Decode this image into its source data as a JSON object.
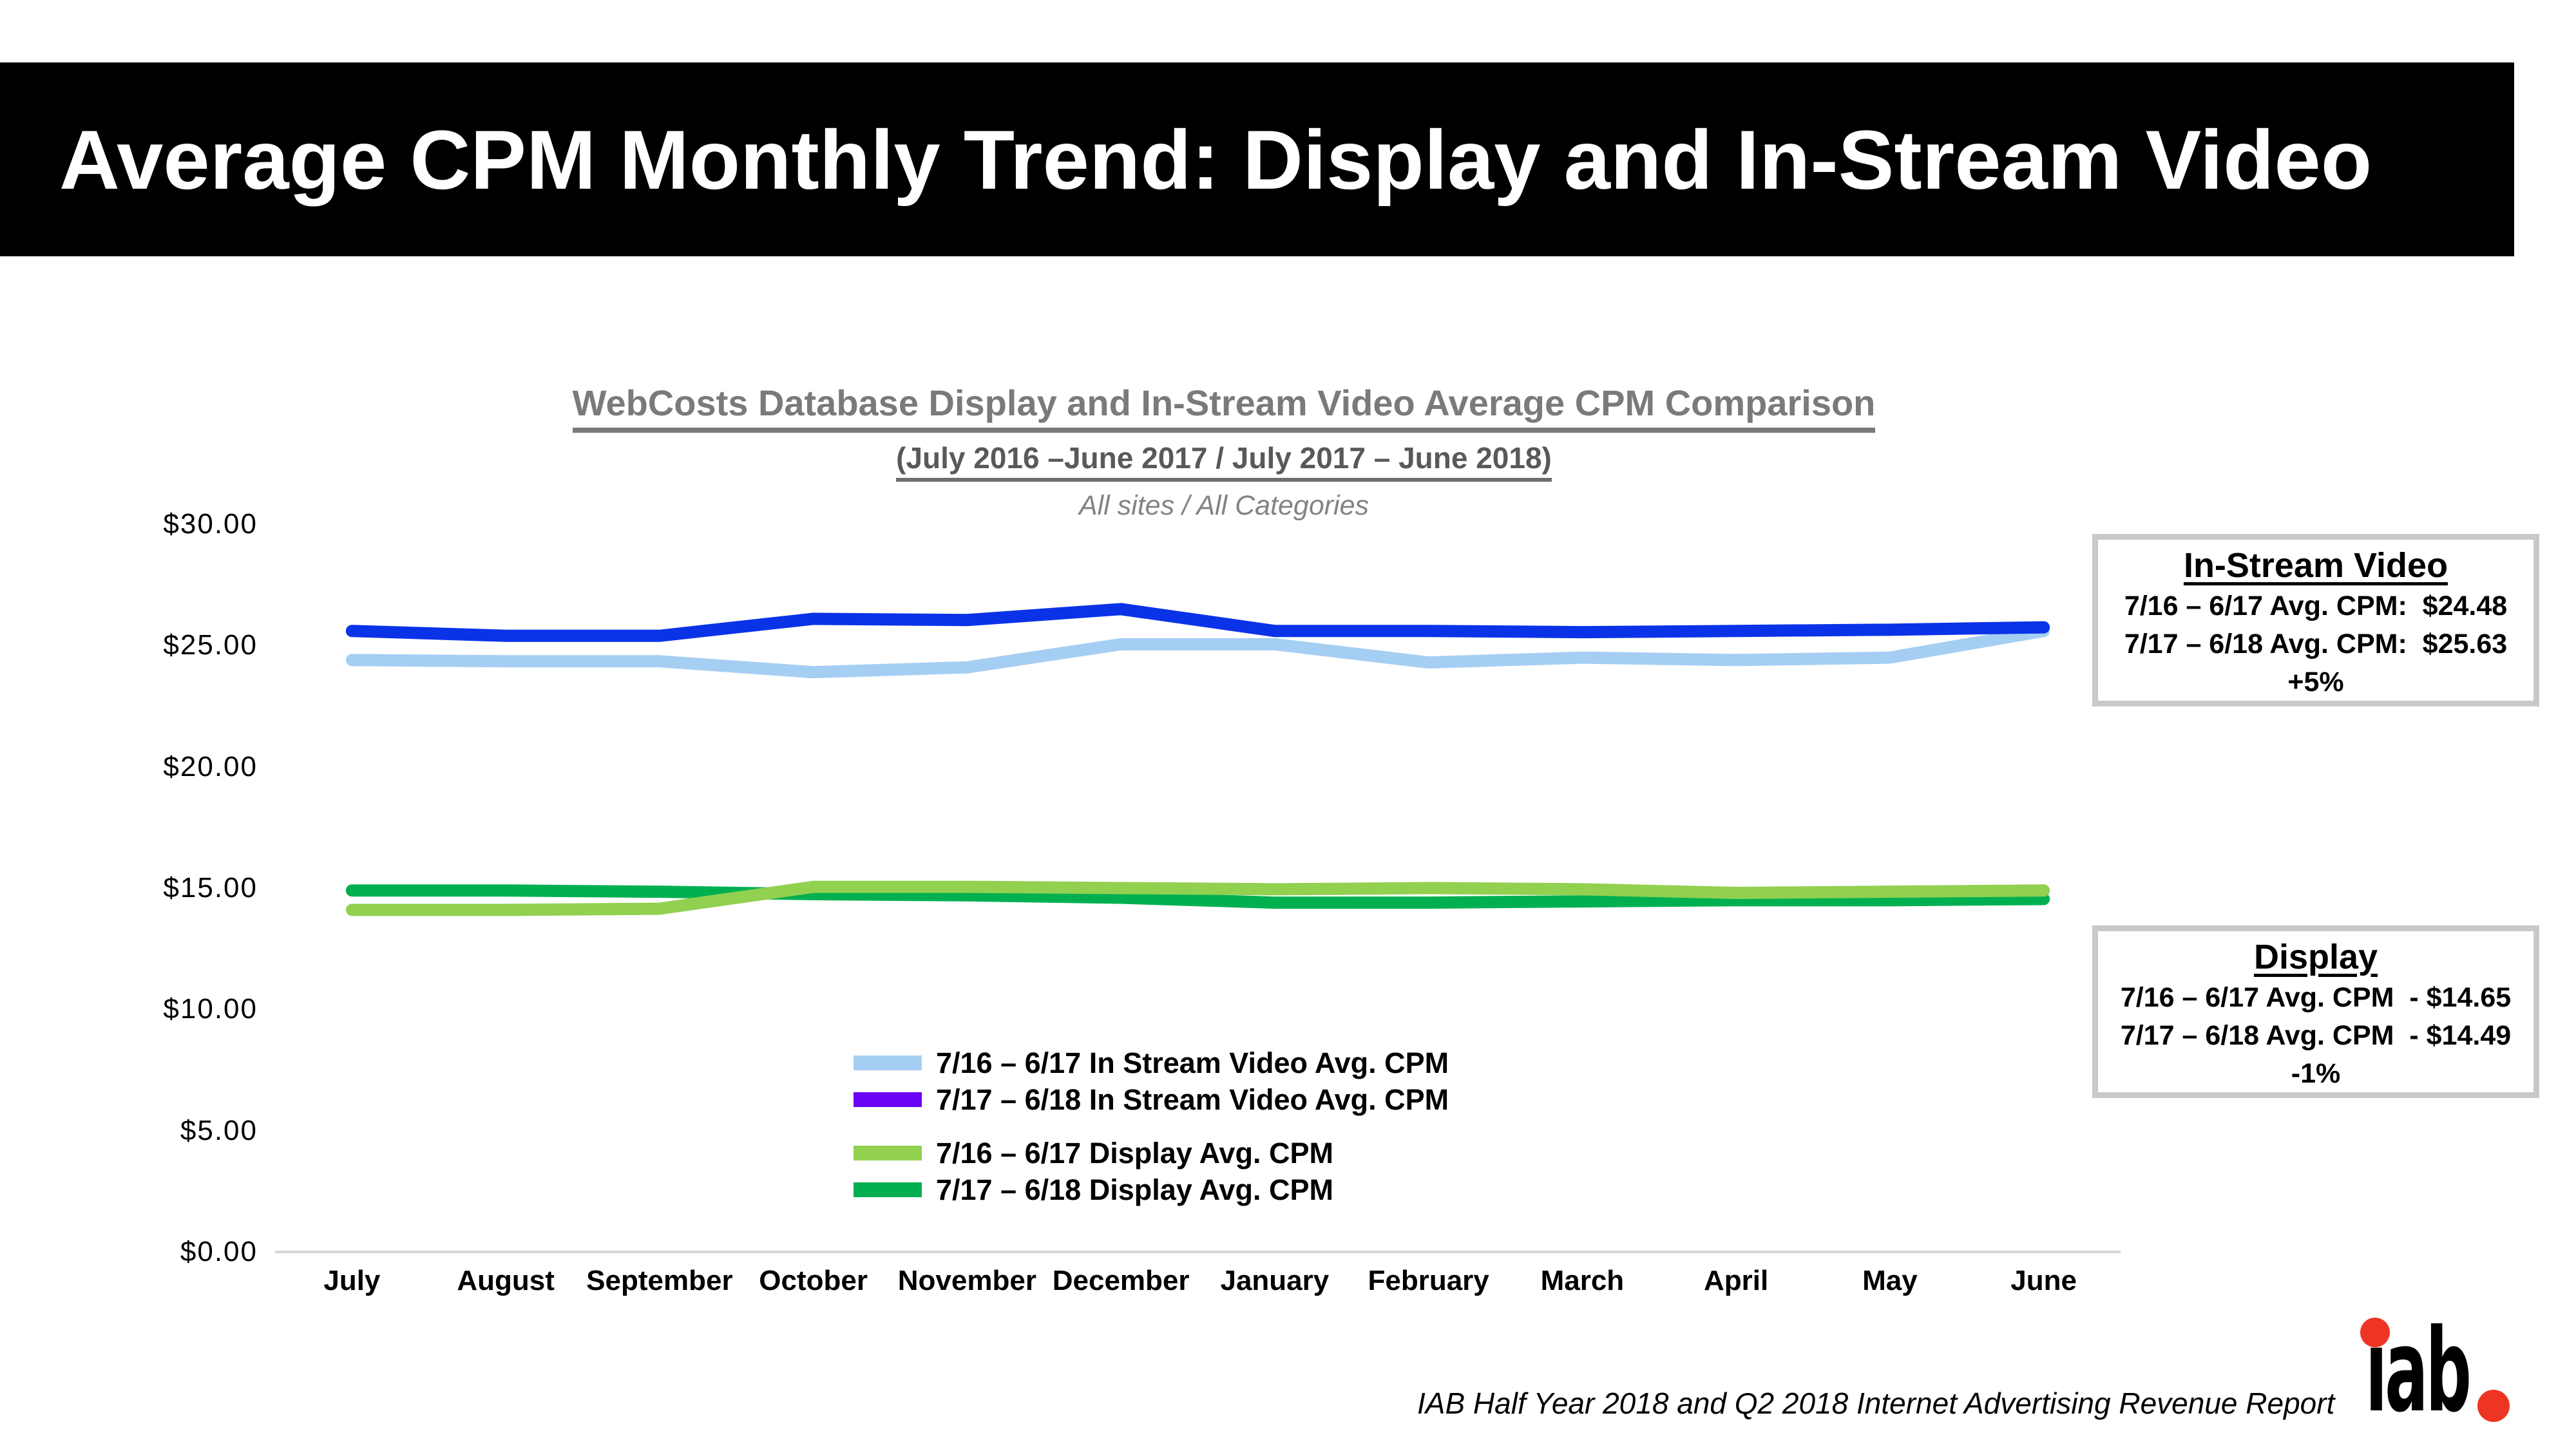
{
  "header": {
    "title": "Average CPM Monthly Trend: Display and In-Stream Video",
    "bg": "#000000",
    "text_color": "#FFFFFF"
  },
  "chart": {
    "title_line1": "WebCosts Database Display and In-Stream Video Average CPM Comparison",
    "title_line2": "(July 2016 –June 2017 / July 2017 – June 2018)",
    "title_line3": "All sites / All Categories"
  },
  "chart_data": {
    "type": "line",
    "title": "WebCosts Database Display and In-Stream Video Average CPM Comparison",
    "subtitle": "(July 2016 –June 2017 / July 2017 – June 2018)",
    "note": "All sites / All Categories",
    "categories": [
      "July",
      "August",
      "September",
      "October",
      "November",
      "December",
      "January",
      "February",
      "March",
      "April",
      "May",
      "June"
    ],
    "ylim": [
      0,
      30
    ],
    "grid": false,
    "legend_position": "inside-bottom-left",
    "yticks": [
      {
        "value": 30,
        "label": "$30.00"
      },
      {
        "value": 25,
        "label": "$25.00"
      },
      {
        "value": 20,
        "label": "$20.00"
      },
      {
        "value": 15,
        "label": "$15.00"
      },
      {
        "value": 10,
        "label": "$10.00"
      },
      {
        "value": 5,
        "label": "$5.00"
      },
      {
        "value": 0,
        "label": "$0.00"
      }
    ],
    "series": [
      {
        "name": "7/16 – 6/17 In Stream Video Avg. CPM",
        "color": "#A5CEF3",
        "legend_color": "#A5CEF3",
        "z": 1,
        "values": [
          24.4,
          24.35,
          24.35,
          23.9,
          24.1,
          25.05,
          25.05,
          24.3,
          24.5,
          24.4,
          24.5,
          25.6
        ]
      },
      {
        "name": "7/17 – 6/18 In Stream Video Avg. CPM",
        "color": "#0A33E8",
        "legend_color": "#6B05F5",
        "z": 2,
        "values": [
          25.6,
          25.4,
          25.4,
          26.1,
          26.05,
          26.5,
          25.6,
          25.6,
          25.55,
          25.6,
          25.65,
          25.75
        ]
      },
      {
        "name": "7/16 – 6/17 Display Avg. CPM",
        "color": "#92D050",
        "legend_color": "#92D050",
        "z": 4,
        "values": [
          14.1,
          14.1,
          14.15,
          15.05,
          15.05,
          15.0,
          14.95,
          15.0,
          14.95,
          14.8,
          14.85,
          14.9
        ]
      },
      {
        "name": "7/17 – 6/18 Display Avg. CPM",
        "color": "#00B050",
        "legend_color": "#00B050",
        "z": 3,
        "values": [
          14.9,
          14.9,
          14.85,
          14.75,
          14.7,
          14.6,
          14.4,
          14.4,
          14.45,
          14.5,
          14.5,
          14.55
        ]
      }
    ]
  },
  "annotations": {
    "in_stream": {
      "title": "In-Stream Video",
      "line1": "7/16 – 6/17 Avg. CPM:  $24.48",
      "line2": "7/17 – 6/18 Avg. CPM:  $25.63",
      "change": "+5%"
    },
    "display": {
      "title": "Display",
      "line1": "7/16 – 6/17 Avg. CPM  - $14.65",
      "line2": "7/17 – 6/18 Avg. CPM  - $14.49",
      "change": "-1%"
    }
  },
  "footer": {
    "source": "IAB Half Year 2018 and Q2 2018 Internet Advertising Revenue Report",
    "logo_text": "iab"
  },
  "colors": {
    "axis_line": "#D6D6D6",
    "callout_border": "#C9C9C9",
    "logo_red": "#EE3524"
  }
}
